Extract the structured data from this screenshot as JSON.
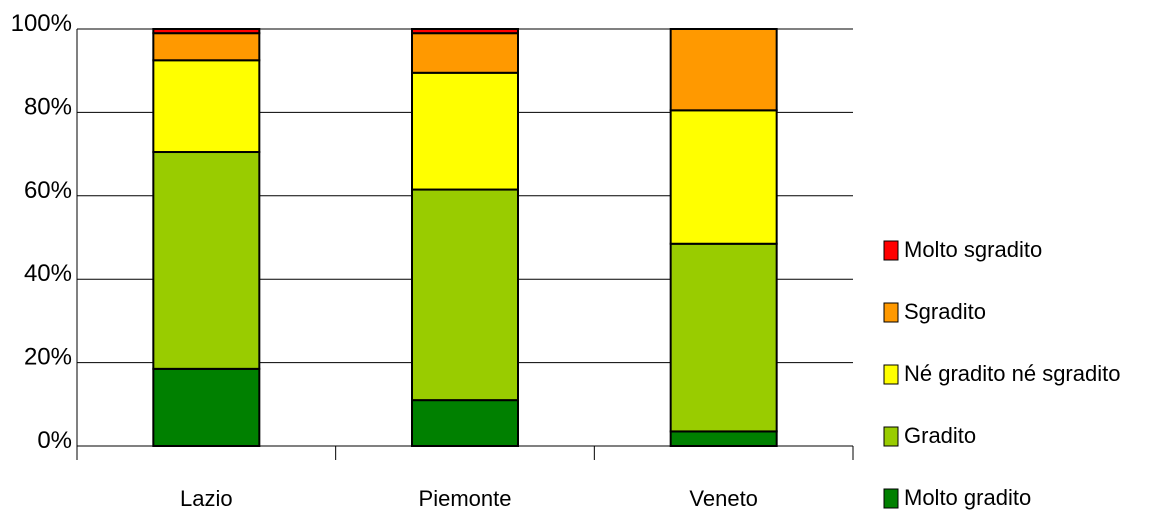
{
  "chart_data": {
    "type": "bar",
    "stacked": true,
    "percent": true,
    "categories": [
      "Lazio",
      "Piemonte",
      "Veneto"
    ],
    "series": [
      {
        "name": "Molto gradito",
        "color": "#008000",
        "values": [
          18.5,
          11,
          3.5
        ]
      },
      {
        "name": "Gradito",
        "color": "#99CC00",
        "values": [
          52,
          50.5,
          45
        ]
      },
      {
        "name": "Né gradito né sgradito",
        "color": "#FFFF00",
        "values": [
          22,
          28,
          32
        ]
      },
      {
        "name": "Sgradito",
        "color": "#FF9900",
        "values": [
          6.5,
          9.5,
          19.5
        ]
      },
      {
        "name": "Molto sgradito",
        "color": "#FF0000",
        "values": [
          1,
          1,
          0
        ]
      }
    ],
    "ylim": [
      0,
      100
    ],
    "yticks": [
      "0%",
      "20%",
      "40%",
      "60%",
      "80%",
      "100%"
    ],
    "grid": true,
    "legend": "right"
  }
}
